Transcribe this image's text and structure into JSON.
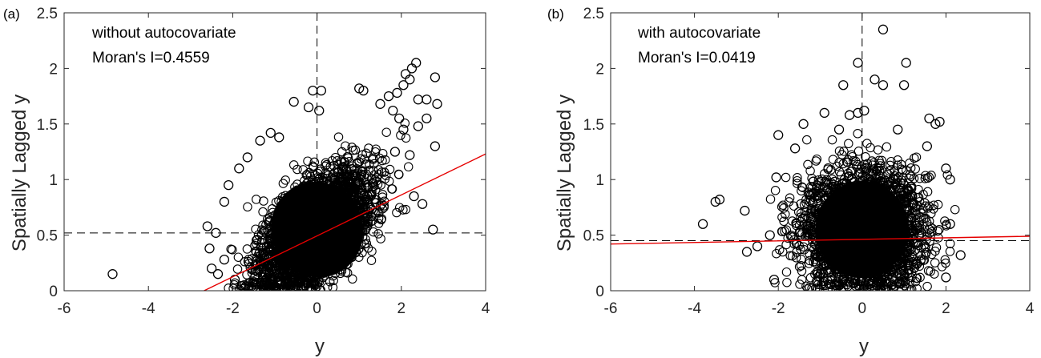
{
  "figure": {
    "xlabel": "y",
    "ylabel": "Spatially Lagged y"
  },
  "colors": {
    "points": "#000000",
    "fit_line": "#e60000",
    "reference": "#000000",
    "axes": "#262626"
  },
  "chart_data": [
    {
      "type": "scatter",
      "panel_label": "(a)",
      "annotation_lines": [
        "without autocovariate",
        "Moran's I=0.4559"
      ],
      "xlabel": "y",
      "ylabel": "Spatially Lagged y",
      "xlim": [
        -6,
        4
      ],
      "ylim": [
        0,
        2.5
      ],
      "xticks": [
        "-6",
        "-4",
        "-2",
        "0",
        "2",
        "4"
      ],
      "yticks": [
        "0",
        "0.5",
        "1",
        "1.5",
        "2",
        "2.5"
      ],
      "grid": false,
      "cloud": {
        "center": [
          0.0,
          0.55
        ],
        "sd": [
          0.7,
          0.28
        ],
        "correlation": 0.55,
        "approx_count": 6000
      },
      "outliers": [
        [
          -4.85,
          0.15
        ],
        [
          -2.6,
          0.58
        ],
        [
          -2.55,
          0.38
        ],
        [
          -2.4,
          0.52
        ],
        [
          -2.2,
          0.28
        ],
        [
          -1.85,
          1.1
        ],
        [
          -1.65,
          1.2
        ],
        [
          -1.35,
          1.35
        ],
        [
          -1.1,
          1.42
        ],
        [
          -0.9,
          1.38
        ],
        [
          -0.55,
          1.7
        ],
        [
          -0.2,
          1.65
        ],
        [
          -0.1,
          1.8
        ],
        [
          0.1,
          1.8
        ],
        [
          0.05,
          1.62
        ],
        [
          1.0,
          1.82
        ],
        [
          1.1,
          1.8
        ],
        [
          1.5,
          1.68
        ],
        [
          1.7,
          1.75
        ],
        [
          1.8,
          1.62
        ],
        [
          1.9,
          1.78
        ],
        [
          1.95,
          1.55
        ],
        [
          2.05,
          1.85
        ],
        [
          2.2,
          1.9
        ],
        [
          2.25,
          2.0
        ],
        [
          2.35,
          2.05
        ],
        [
          2.1,
          1.95
        ],
        [
          2.4,
          1.72
        ],
        [
          2.6,
          1.72
        ],
        [
          2.8,
          1.92
        ],
        [
          2.85,
          1.68
        ],
        [
          2.6,
          1.55
        ],
        [
          2.8,
          1.3
        ],
        [
          2.4,
          1.48
        ],
        [
          2.75,
          0.55
        ],
        [
          2.3,
          0.85
        ],
        [
          2.5,
          0.78
        ],
        [
          2.2,
          1.22
        ],
        [
          2.05,
          1.45
        ],
        [
          1.85,
          1.25
        ],
        [
          -2.1,
          0.95
        ],
        [
          -2.35,
          0.15
        ],
        [
          -1.95,
          0.1
        ],
        [
          -2.2,
          0.8
        ],
        [
          -2.5,
          0.2
        ]
      ],
      "reference_lines": {
        "x": 0,
        "y": 0.52
      },
      "fit_line": {
        "x": [
          -2.68,
          4
        ],
        "y": [
          0,
          1.23
        ]
      }
    },
    {
      "type": "scatter",
      "panel_label": "(b)",
      "annotation_lines": [
        "with autocovariate",
        "Moran's I=0.0419"
      ],
      "xlabel": "y",
      "ylabel": "Spatially Lagged y",
      "xlim": [
        -6,
        4
      ],
      "ylim": [
        0,
        2.5
      ],
      "xticks": [
        "-6",
        "-4",
        "-2",
        "0",
        "2",
        "4"
      ],
      "yticks": [
        "0",
        "0.5",
        "1",
        "1.5",
        "2",
        "2.5"
      ],
      "grid": false,
      "cloud": {
        "center": [
          0.0,
          0.55
        ],
        "sd": [
          0.72,
          0.28
        ],
        "correlation": 0.02,
        "approx_count": 6000
      },
      "outliers": [
        [
          -3.8,
          0.6
        ],
        [
          -3.5,
          0.8
        ],
        [
          -3.4,
          0.82
        ],
        [
          -2.8,
          0.72
        ],
        [
          -2.75,
          0.35
        ],
        [
          -2.5,
          0.4
        ],
        [
          -2.2,
          0.5
        ],
        [
          -2.05,
          1.02
        ],
        [
          -2.0,
          1.4
        ],
        [
          -1.6,
          1.28
        ],
        [
          -1.4,
          1.5
        ],
        [
          -0.9,
          1.6
        ],
        [
          -0.55,
          1.45
        ],
        [
          -0.3,
          1.58
        ],
        [
          -0.1,
          1.6
        ],
        [
          0.05,
          1.62
        ],
        [
          -0.45,
          1.85
        ],
        [
          -0.1,
          2.05
        ],
        [
          0.3,
          1.9
        ],
        [
          0.5,
          2.35
        ],
        [
          0.5,
          1.85
        ],
        [
          1.0,
          1.85
        ],
        [
          1.05,
          2.05
        ],
        [
          0.85,
          1.45
        ],
        [
          1.55,
          1.3
        ],
        [
          1.6,
          1.55
        ],
        [
          1.75,
          1.5
        ],
        [
          1.85,
          1.52
        ],
        [
          2.0,
          1.1
        ],
        [
          2.1,
          1.0
        ],
        [
          2.35,
          0.32
        ],
        [
          2.1,
          0.6
        ],
        [
          -2.1,
          0.1
        ],
        [
          2.0,
          0.12
        ],
        [
          1.6,
          0.55
        ]
      ],
      "reference_lines": {
        "x": 0,
        "y": 0.45
      },
      "fit_line": {
        "x": [
          -6,
          4
        ],
        "y": [
          0.42,
          0.49
        ]
      }
    }
  ]
}
